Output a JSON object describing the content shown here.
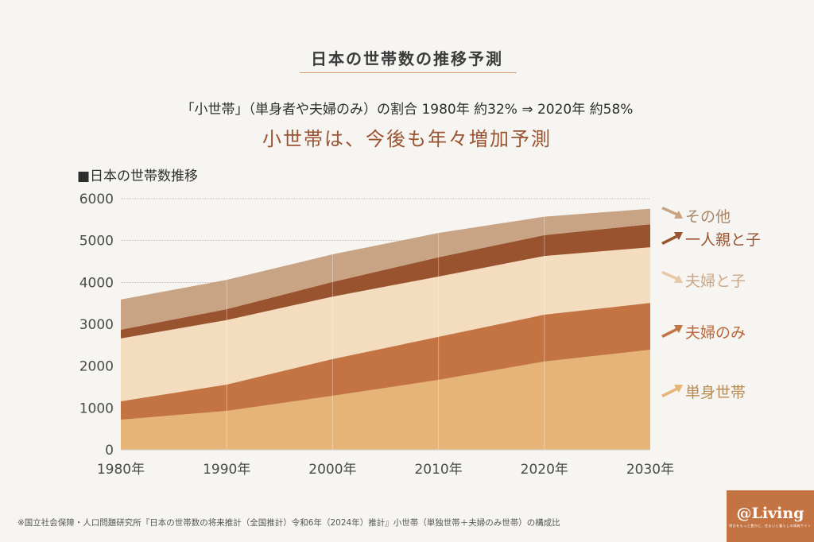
{
  "title": "日本の世帯数の推移予測",
  "subtitle": "「小世帯」（単身者や夫婦のみ）の割合 1980年 約32% ⇒ 2020年 約58%",
  "headline": "小世帯は、今後も年々増加予測",
  "footnote": "※国立社会保障・人口問題研究所『日本の世帯数の将来推計（全国推計）令和6年（2024年）推計』小世帯（単独世帯＋夫婦のみ世帯）の構成比",
  "logo": {
    "main": "@Living",
    "sub": "明日をもっと豊かに、住まいと暮らしの情報サイト"
  },
  "colors": {
    "background": "#f7f5f1",
    "accent": "#9a5431",
    "title_rule": "#d49a72"
  },
  "chart_data": {
    "type": "area",
    "stacked": true,
    "title": "■日本の世帯数推移",
    "xlabel": "",
    "ylabel": "",
    "x": [
      "1980年",
      "1990年",
      "2000年",
      "2010年",
      "2020年",
      "2030年"
    ],
    "ylim": [
      0,
      6000
    ],
    "yticks": [
      0,
      1000,
      2000,
      3000,
      4000,
      5000,
      6000
    ],
    "grid": "horizontal dotted at 4000, 5000, 6000",
    "legend_placement": "right",
    "series": [
      {
        "name": "単身世帯",
        "color": "#e6b476",
        "label_color": "#b98a50",
        "arrow": "up",
        "values": [
          720,
          930,
          1290,
          1670,
          2110,
          2390
        ]
      },
      {
        "name": "夫婦のみ",
        "color": "#c47443",
        "label_color": "#b8683a",
        "arrow": "up",
        "values": [
          440,
          630,
          880,
          1030,
          1120,
          1120
        ]
      },
      {
        "name": "夫婦と子",
        "color": "#f4dcbf",
        "label_color": "#c9a88a",
        "arrow": "down",
        "values": [
          1500,
          1540,
          1490,
          1440,
          1400,
          1330
        ]
      },
      {
        "name": "一人親と子",
        "color": "#99532f",
        "label_color": "#99532f",
        "arrow": "up",
        "values": [
          210,
          260,
          350,
          460,
          500,
          550
        ]
      },
      {
        "name": "その他",
        "color": "#c8a384",
        "label_color": "#a88668",
        "arrow": "down",
        "values": [
          720,
          700,
          660,
          580,
          440,
          370
        ]
      }
    ]
  }
}
